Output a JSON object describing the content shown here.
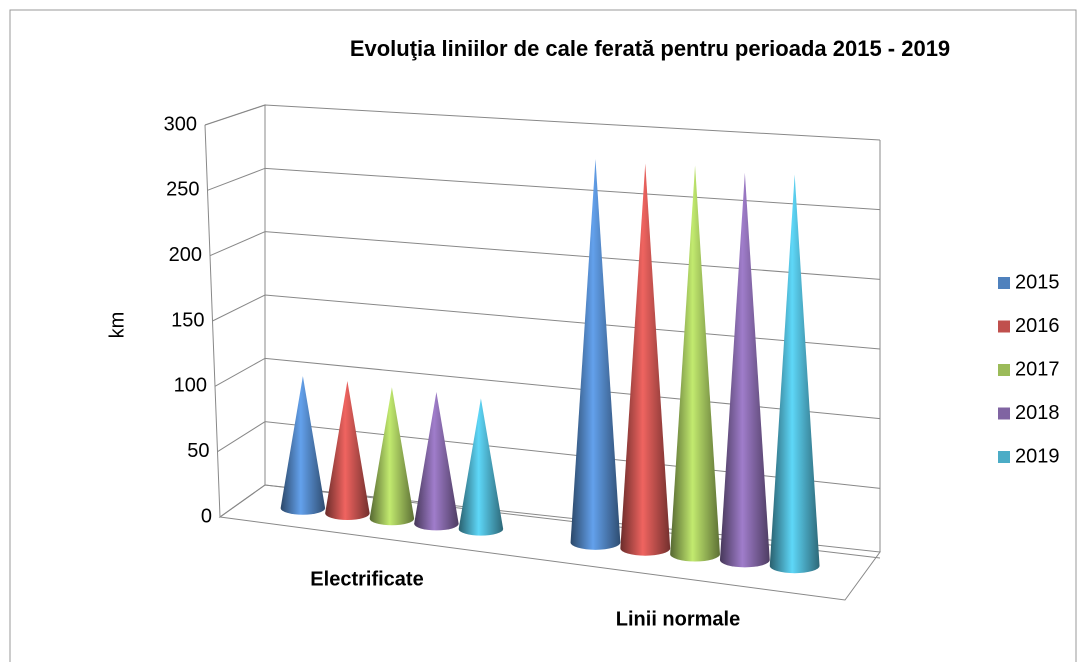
{
  "chart_data": {
    "type": "cone3d",
    "title": "Evoluţia liniilor de cale ferată pentru perioada 2015 - 2019",
    "y_label": "km",
    "categories": [
      "Electrificate",
      "Linii normale"
    ],
    "series": [
      {
        "name": "2015",
        "color": "#4f81bd",
        "values": [
          94,
          268
        ]
      },
      {
        "name": "2016",
        "color": "#c0504d",
        "values": [
          94,
          268
        ]
      },
      {
        "name": "2017",
        "color": "#9bbb59",
        "values": [
          93,
          270
        ]
      },
      {
        "name": "2018",
        "color": "#8064a2",
        "values": [
          93,
          268
        ]
      },
      {
        "name": "2019",
        "color": "#4bacc6",
        "values": [
          92,
          270
        ]
      }
    ],
    "ylim": [
      0,
      300
    ],
    "yticks": [
      0,
      50,
      100,
      150,
      200,
      250,
      300
    ],
    "grid": true,
    "legend": "right"
  }
}
